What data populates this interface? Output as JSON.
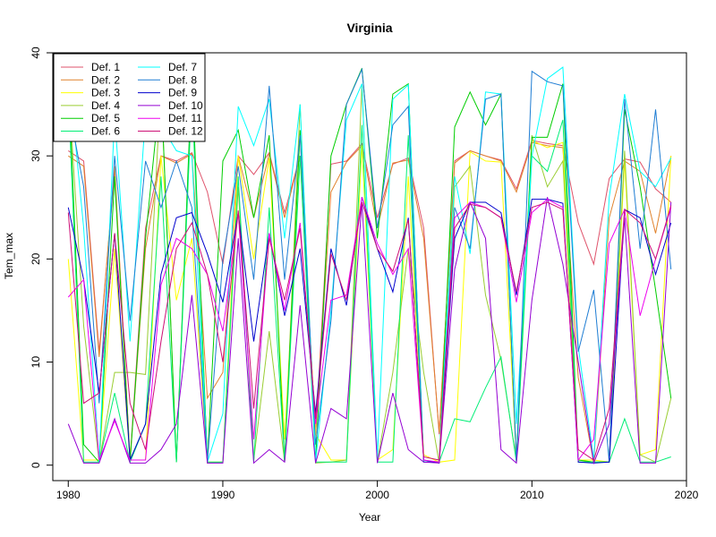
{
  "chart_data": {
    "type": "line",
    "title": "Virginia",
    "xlabel": "Year",
    "ylabel": "Tem_max",
    "xlim": [
      1979,
      2020
    ],
    "ylim": [
      -1.5,
      40
    ],
    "xticks": [
      1980,
      1990,
      2000,
      2010,
      2020
    ],
    "yticks": [
      0,
      10,
      20,
      30,
      40
    ],
    "grid": false,
    "legend_position": "top-left",
    "legend_columns": 2,
    "x": [
      1980,
      1981,
      1982,
      1983,
      1984,
      1985,
      1986,
      1987,
      1988,
      1989,
      1990,
      1991,
      1992,
      1993,
      1994,
      1995,
      1996,
      1997,
      1998,
      1999,
      2000,
      2001,
      2002,
      2003,
      2004,
      2005,
      2006,
      2007,
      2008,
      2009,
      2010,
      2011,
      2012,
      2013,
      2014,
      2015,
      2016,
      2017,
      2018,
      2019
    ],
    "series": [
      {
        "name": "Def. 1",
        "color": "#DF536B",
        "values": [
          30.5,
          29.5,
          11,
          28.5,
          0.5,
          23,
          30,
          29.5,
          30.3,
          26.5,
          19.5,
          30,
          28.2,
          30.3,
          24.5,
          30,
          3,
          29.2,
          29.5,
          31.2,
          24,
          29.2,
          29.8,
          23,
          3,
          29.5,
          30.5,
          30,
          29.6,
          26.8,
          31.5,
          31.2,
          31,
          23.5,
          19.5,
          27.8,
          29.7,
          29.4,
          26.8,
          25.5
        ]
      },
      {
        "name": "Def. 2",
        "color": "#E0822C",
        "values": [
          30,
          29,
          10.5,
          29,
          0.5,
          21,
          30,
          29.3,
          30.2,
          6.5,
          9,
          30,
          24,
          30.2,
          24,
          30,
          3,
          26.5,
          29.4,
          31,
          23,
          29.3,
          29.6,
          22,
          3.2,
          29.3,
          30.5,
          30,
          29.5,
          26.5,
          31.3,
          31,
          30.8,
          8.5,
          0.2,
          24,
          29.5,
          28.5,
          22.5,
          30
        ]
      },
      {
        "name": "Def. 3",
        "color": "#FFFF00",
        "values": [
          20,
          0.5,
          0.5,
          21,
          0.5,
          0.5,
          30,
          16,
          22,
          0.3,
          0.3,
          30,
          20,
          29.8,
          2.5,
          29.8,
          3,
          0.5,
          0.5,
          31,
          0.5,
          1.5,
          28,
          1,
          0.3,
          0.5,
          30.4,
          29.5,
          29.4,
          0.5,
          31.5,
          30.8,
          31.3,
          0.5,
          0.5,
          0.3,
          29.5,
          1,
          1.5,
          30
        ]
      },
      {
        "name": "Def. 4",
        "color": "#9ACD32",
        "values": [
          37,
          13.5,
          0.3,
          9,
          9,
          8.8,
          37,
          0.3,
          37,
          0.2,
          0.3,
          27,
          0.5,
          13,
          0.3,
          35,
          0.2,
          0.3,
          0.5,
          37,
          0.3,
          9,
          21,
          9,
          0.2,
          27,
          29,
          16.5,
          10.2,
          0.5,
          32,
          27,
          29.5,
          0.3,
          0.3,
          0.3,
          30.5,
          1,
          0.3,
          6.5
        ]
      },
      {
        "name": "Def. 5",
        "color": "#00CD00",
        "values": [
          38,
          2,
          0.3,
          28,
          0.3,
          22,
          37,
          0.3,
          38,
          0.3,
          29.5,
          32.5,
          24,
          32,
          0.3,
          32.5,
          0.3,
          30,
          35,
          38.5,
          22,
          36,
          37,
          0.3,
          0.3,
          32.8,
          36.2,
          33,
          36,
          0.3,
          31.8,
          31.8,
          37,
          0.5,
          0.3,
          0.3,
          34.5,
          27,
          17,
          6.5
        ]
      },
      {
        "name": "Def. 6",
        "color": "#00EE76",
        "values": [
          36,
          0.3,
          0.3,
          7,
          0.3,
          4,
          28,
          0.3,
          36,
          0.3,
          0.3,
          28,
          0.3,
          25,
          0.3,
          30,
          0.3,
          0.3,
          0.3,
          33,
          0.3,
          0.3,
          32,
          0.3,
          0.3,
          4.5,
          4.2,
          7.5,
          10.5,
          0.3,
          30,
          28.5,
          33.5,
          0.3,
          0.3,
          0.3,
          4.5,
          0.3,
          0.3,
          0.8
        ]
      },
      {
        "name": "Def. 7",
        "color": "#00FFFF",
        "values": [
          38.5,
          23,
          0.3,
          34,
          12,
          34,
          33,
          30.5,
          30,
          0.3,
          5,
          34.8,
          31,
          35.5,
          22,
          35,
          0.3,
          15,
          33.5,
          37,
          0.5,
          35.5,
          36.9,
          0.3,
          0.3,
          28,
          20.5,
          36.2,
          36,
          4,
          30,
          37.5,
          38.6,
          11.5,
          0.5,
          26,
          36,
          28.5,
          27,
          29.8
        ]
      },
      {
        "name": "Def. 8",
        "color": "#1F7DD3",
        "values": [
          35,
          27,
          6,
          30,
          14,
          29.5,
          25,
          29.5,
          25,
          0.3,
          20,
          29,
          18,
          36.8,
          18,
          32,
          2,
          14,
          35,
          38.4,
          23,
          33,
          34.8,
          0.3,
          0.3,
          25,
          21,
          35.5,
          36,
          0.3,
          38.2,
          37.2,
          36.8,
          11,
          17,
          0.3,
          35.5,
          21,
          34.5,
          19
        ]
      },
      {
        "name": "Def. 9",
        "color": "#0000CD",
        "values": [
          25,
          18,
          7,
          22.5,
          0.5,
          4,
          18.5,
          24,
          24.5,
          20.5,
          15.8,
          24.5,
          12,
          22.5,
          14.5,
          21,
          5,
          21,
          15.5,
          26,
          21,
          16.8,
          24,
          0.5,
          0.2,
          22,
          25.5,
          25.5,
          24.5,
          16.5,
          25.8,
          25.8,
          25.4,
          0.3,
          0.2,
          0.3,
          24.8,
          24,
          18.5,
          23.5
        ]
      },
      {
        "name": "Def. 10",
        "color": "#9400D3",
        "values": [
          4,
          0.2,
          0.2,
          4.5,
          0.2,
          0.2,
          1.5,
          4,
          16.5,
          0.2,
          0.2,
          22,
          0.2,
          1.5,
          0.3,
          15.5,
          0.2,
          5.5,
          4.5,
          25.5,
          0.2,
          7,
          1.5,
          0.3,
          0.2,
          19,
          25.5,
          22,
          1.5,
          0.2,
          16,
          26,
          19.5,
          10,
          0.2,
          4,
          24,
          0.2,
          0.2,
          25.5
        ]
      },
      {
        "name": "Def. 11",
        "color": "#EE00EE",
        "values": [
          16.3,
          18,
          0.5,
          4.3,
          0.5,
          0.5,
          17.5,
          22,
          21,
          18.5,
          13,
          24.5,
          2.5,
          22.5,
          15,
          23.5,
          4,
          16,
          16.5,
          26,
          21.5,
          18.5,
          21,
          0.5,
          0.3,
          24,
          25.5,
          25,
          24,
          15.8,
          24.5,
          25.8,
          25,
          0.5,
          2.5,
          21.5,
          24.8,
          14.5,
          20,
          25
        ]
      },
      {
        "name": "Def. 12",
        "color": "#CD1076",
        "values": [
          24.5,
          6,
          7,
          22.5,
          6,
          1.5,
          12,
          21,
          23.5,
          18.5,
          10,
          24.7,
          5.5,
          22,
          16,
          23,
          4.5,
          20.5,
          16,
          25.5,
          21,
          18.8,
          23.8,
          0.8,
          0.5,
          23,
          25.3,
          25,
          24,
          16.8,
          25,
          25.5,
          24.8,
          1.5,
          0.5,
          5.5,
          24.8,
          23.5,
          20,
          25.2
        ]
      }
    ]
  }
}
